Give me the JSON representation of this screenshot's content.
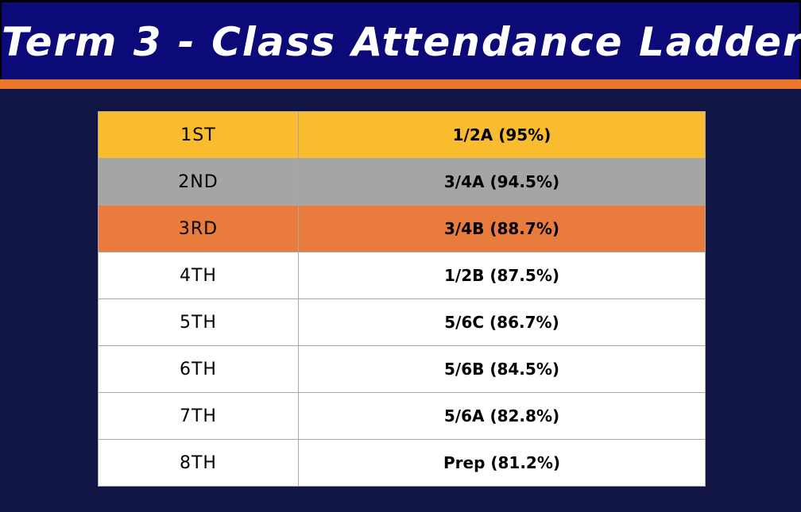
{
  "header": {
    "title": "Term 3 - Class Attendance Ladder"
  },
  "ladder": {
    "rows": [
      {
        "rank": "1ST",
        "class": "1/2A (95%)",
        "attendance_percent": 95,
        "row_color": "#f8bc2e"
      },
      {
        "rank": "2ND",
        "class": "3/4A (94.5%)",
        "attendance_percent": 94.5,
        "row_color": "#a5a5a5"
      },
      {
        "rank": "3RD",
        "class": "3/4B (88.7%)",
        "attendance_percent": 88.7,
        "row_color": "#e97c3c"
      },
      {
        "rank": "4TH",
        "class": "1/2B (87.5%)",
        "attendance_percent": 87.5,
        "row_color": "#ffffff"
      },
      {
        "rank": "5TH",
        "class": "5/6C (86.7%)",
        "attendance_percent": 86.7,
        "row_color": "#ffffff"
      },
      {
        "rank": "6TH",
        "class": "5/6B (84.5%)",
        "attendance_percent": 84.5,
        "row_color": "#ffffff"
      },
      {
        "rank": "7TH",
        "class": "5/6A (82.8%)",
        "attendance_percent": 82.8,
        "row_color": "#ffffff"
      },
      {
        "rank": "8TH",
        "class": "Prep (81.2%)",
        "attendance_percent": 81.2,
        "row_color": "#ffffff"
      }
    ]
  },
  "colors": {
    "background": "#111544",
    "header_background": "#0c0a78",
    "accent": "#e9762b"
  }
}
